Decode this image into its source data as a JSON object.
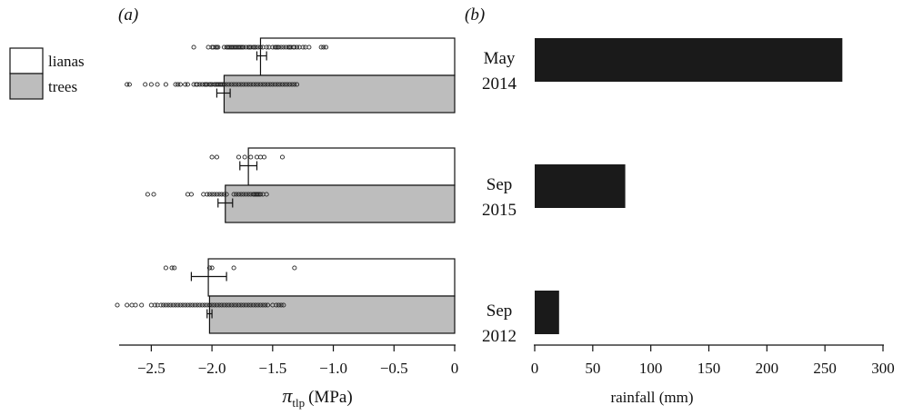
{
  "chart_data": [
    {
      "type": "bar",
      "panel_label": "(a)",
      "orientation": "horizontal",
      "xlabel_symbol": "π",
      "xlabel_subscript": "tlp",
      "xlabel_unit": "(MPa)",
      "xlim": [
        -2.75,
        0
      ],
      "xticks": [
        -2.5,
        -2.0,
        -1.5,
        -1.0,
        -0.5,
        0
      ],
      "xtick_labels": [
        "−2.5",
        "−2.0",
        "−1.5",
        "−1.0",
        "−0.5",
        "0"
      ],
      "legend_placement": "left",
      "legend": [
        {
          "label": "lianas",
          "color": "#ffffff"
        },
        {
          "label": "trees",
          "color": "#bdbdbd"
        }
      ],
      "groups": [
        {
          "lianas": {
            "mean": -1.6,
            "se_low": -1.63,
            "se_high": -1.55,
            "points": [
              -2.15,
              -2.03,
              -2.0,
              -1.99,
              -1.97,
              -1.96,
              -1.95,
              -1.9,
              -1.88,
              -1.87,
              -1.86,
              -1.85,
              -1.84,
              -1.83,
              -1.82,
              -1.81,
              -1.8,
              -1.79,
              -1.78,
              -1.77,
              -1.76,
              -1.75,
              -1.74,
              -1.72,
              -1.7,
              -1.69,
              -1.68,
              -1.66,
              -1.65,
              -1.64,
              -1.62,
              -1.6,
              -1.58,
              -1.55,
              -1.53,
              -1.5,
              -1.48,
              -1.47,
              -1.46,
              -1.45,
              -1.43,
              -1.41,
              -1.39,
              -1.37,
              -1.36,
              -1.35,
              -1.33,
              -1.32,
              -1.3,
              -1.28,
              -1.25,
              -1.23,
              -1.2,
              -1.1,
              -1.08,
              -1.06
            ]
          },
          "trees": {
            "mean": -1.9,
            "se_low": -1.96,
            "se_high": -1.85,
            "points": [
              -2.7,
              -2.68,
              -2.55,
              -2.5,
              -2.45,
              -2.38,
              -2.3,
              -2.28,
              -2.26,
              -2.22,
              -2.2,
              -2.15,
              -2.13,
              -2.12,
              -2.1,
              -2.08,
              -2.06,
              -2.05,
              -2.04,
              -2.02,
              -2.01,
              -2.0,
              -1.98,
              -1.97,
              -1.96,
              -1.95,
              -1.94,
              -1.93,
              -1.92,
              -1.91,
              -1.9,
              -1.88,
              -1.86,
              -1.84,
              -1.82,
              -1.8,
              -1.78,
              -1.76,
              -1.74,
              -1.72,
              -1.7,
              -1.68,
              -1.66,
              -1.64,
              -1.62,
              -1.6,
              -1.58,
              -1.56,
              -1.54,
              -1.52,
              -1.5,
              -1.48,
              -1.46,
              -1.44,
              -1.42,
              -1.4,
              -1.38,
              -1.36,
              -1.34,
              -1.32,
              -1.3
            ]
          }
        },
        {
          "lianas": {
            "mean": -1.7,
            "se_low": -1.77,
            "se_high": -1.63,
            "points": [
              -2.0,
              -1.96,
              -1.78,
              -1.73,
              -1.68,
              -1.63,
              -1.6,
              -1.57,
              -1.42
            ]
          },
          "trees": {
            "mean": -1.89,
            "se_low": -1.95,
            "se_high": -1.83,
            "points": [
              -2.53,
              -2.48,
              -2.2,
              -2.17,
              -2.07,
              -2.04,
              -2.02,
              -2.0,
              -1.98,
              -1.96,
              -1.94,
              -1.92,
              -1.9,
              -1.88,
              -1.82,
              -1.8,
              -1.78,
              -1.76,
              -1.74,
              -1.72,
              -1.7,
              -1.68,
              -1.66,
              -1.65,
              -1.64,
              -1.63,
              -1.62,
              -1.61,
              -1.6,
              -1.58,
              -1.55
            ]
          }
        },
        {
          "lianas": {
            "mean": -2.03,
            "se_low": -2.17,
            "se_high": -1.88,
            "points": [
              -2.38,
              -2.33,
              -2.31,
              -2.02,
              -2.0,
              -1.82,
              -1.32
            ]
          },
          "trees": {
            "mean": -2.02,
            "se_low": -2.04,
            "se_high": -2.0,
            "points": [
              -2.78,
              -2.7,
              -2.66,
              -2.63,
              -2.58,
              -2.5,
              -2.47,
              -2.45,
              -2.42,
              -2.4,
              -2.38,
              -2.36,
              -2.34,
              -2.32,
              -2.3,
              -2.28,
              -2.26,
              -2.24,
              -2.22,
              -2.2,
              -2.18,
              -2.16,
              -2.14,
              -2.12,
              -2.1,
              -2.08,
              -2.06,
              -2.04,
              -2.02,
              -2.0,
              -1.98,
              -1.96,
              -1.94,
              -1.92,
              -1.9,
              -1.88,
              -1.86,
              -1.84,
              -1.82,
              -1.8,
              -1.78,
              -1.76,
              -1.74,
              -1.72,
              -1.7,
              -1.68,
              -1.66,
              -1.64,
              -1.62,
              -1.6,
              -1.58,
              -1.56,
              -1.54,
              -1.5,
              -1.47,
              -1.45,
              -1.43,
              -1.41
            ]
          }
        }
      ]
    },
    {
      "type": "bar",
      "panel_label": "(b)",
      "orientation": "horizontal",
      "categories": [
        [
          "May",
          "2014"
        ],
        [
          "Sep",
          "2015"
        ],
        [
          "Sep",
          "2012"
        ]
      ],
      "values": [
        265,
        78,
        21
      ],
      "xlabel": "rainfall (mm)",
      "xlim": [
        0,
        300
      ],
      "xticks": [
        0,
        50,
        100,
        150,
        200,
        250,
        300
      ],
      "xtick_labels": [
        "0",
        "50",
        "100",
        "150",
        "200",
        "250",
        "300"
      ],
      "bar_color": "#1a1a1a"
    }
  ]
}
